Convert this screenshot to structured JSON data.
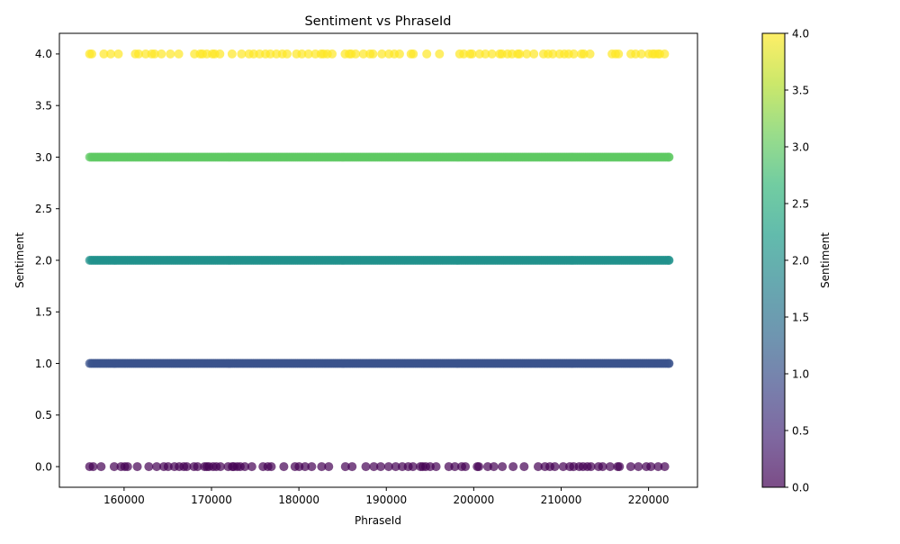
{
  "chart_data": {
    "type": "scatter",
    "title": "Sentiment vs PhraseId",
    "xlabel": "PhraseId",
    "ylabel": "Sentiment",
    "xlim": [
      152600,
      225600
    ],
    "ylim": [
      -0.2,
      4.2
    ],
    "x_ticks": [
      160000,
      170000,
      180000,
      190000,
      200000,
      210000,
      220000
    ],
    "x_tick_labels": [
      "160000",
      "170000",
      "180000",
      "190000",
      "200000",
      "210000",
      "220000"
    ],
    "y_ticks": [
      0.0,
      0.5,
      1.0,
      1.5,
      2.0,
      2.5,
      3.0,
      3.5,
      4.0
    ],
    "y_tick_labels": [
      "0.0",
      "0.5",
      "1.0",
      "1.5",
      "2.0",
      "2.5",
      "3.0",
      "3.5",
      "4.0"
    ],
    "x_range_of_points": [
      156061,
      222352
    ],
    "grid": false,
    "colormap": "viridis",
    "point_alpha": 0.7,
    "series": [
      {
        "sentiment": 0,
        "color": "#440154",
        "density": "sparse"
      },
      {
        "sentiment": 1,
        "color": "#3b528b",
        "density": "dense"
      },
      {
        "sentiment": 2,
        "color": "#21918c",
        "density": "dense"
      },
      {
        "sentiment": 3,
        "color": "#5ec962",
        "density": "dense"
      },
      {
        "sentiment": 4,
        "color": "#fde725",
        "density": "sparse"
      }
    ],
    "colorbar": {
      "label": "Sentiment",
      "range": [
        0.0,
        4.0
      ],
      "ticks": [
        0.0,
        0.5,
        1.0,
        1.5,
        2.0,
        2.5,
        3.0,
        3.5,
        4.0
      ],
      "tick_labels": [
        "0.0",
        "0.5",
        "1.0",
        "1.5",
        "2.0",
        "2.5",
        "3.0",
        "3.5",
        "4.0"
      ],
      "stops": [
        "#440154",
        "#482878",
        "#3e4989",
        "#31688e",
        "#26828e",
        "#1f9e89",
        "#35b779",
        "#6ece58",
        "#b5de2b",
        "#fde725"
      ]
    }
  }
}
